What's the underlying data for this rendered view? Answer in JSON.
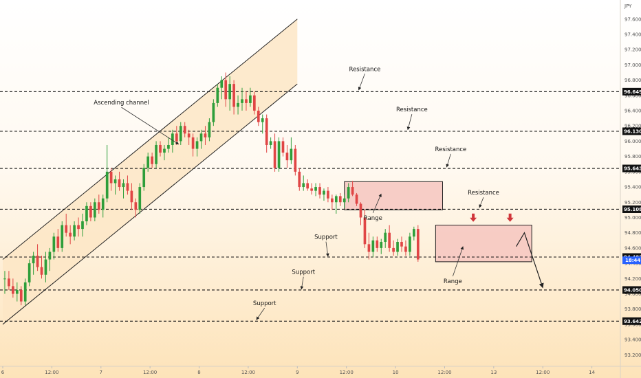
{
  "chart_data": {
    "type": "candlestick",
    "currency": "JPY",
    "colors": {
      "up": "#2e9e3a",
      "down": "#e04545",
      "channel_fill": "#fde6c6",
      "range_fill": "#f6c5c0",
      "level_line": "#111111",
      "badge_bg": "#111111",
      "current_price_bg": "#2962ff",
      "marker_arrow": "#d0343a"
    },
    "y_axis": {
      "ylim": [
        93.05,
        97.85
      ],
      "ticks": [
        "97.600",
        "97.400",
        "97.200",
        "97.000",
        "96.800",
        "96.600",
        "96.400",
        "96.200",
        "96.000",
        "95.800",
        "95.600",
        "95.400",
        "95.200",
        "95.000",
        "94.800",
        "94.600",
        "94.400",
        "94.200",
        "94.000",
        "93.800",
        "93.600",
        "93.400",
        "93.200"
      ]
    },
    "x_axis": {
      "xlim": [
        0,
        156
      ],
      "ticks": [
        {
          "label": "6",
          "x": 0
        },
        {
          "label": "12:00",
          "x": 12
        },
        {
          "label": "7",
          "x": 24
        },
        {
          "label": "12:00",
          "x": 36
        },
        {
          "label": "8",
          "x": 48
        },
        {
          "label": "12:00",
          "x": 60
        },
        {
          "label": "9",
          "x": 72
        },
        {
          "label": "12:00",
          "x": 84
        },
        {
          "label": "10",
          "x": 96
        },
        {
          "label": "12:00",
          "x": 108
        },
        {
          "label": "13",
          "x": 120
        },
        {
          "label": "12:00",
          "x": 132
        },
        {
          "label": "14",
          "x": 144
        }
      ]
    },
    "price_levels": [
      {
        "value": 96.649,
        "label": "96.649",
        "kind": "resistance"
      },
      {
        "value": 96.13,
        "label": "96.130",
        "kind": "resistance"
      },
      {
        "value": 95.643,
        "label": "95.643",
        "kind": "resistance"
      },
      {
        "value": 95.108,
        "label": "95.108",
        "kind": "resistance"
      },
      {
        "value": 94.482,
        "label": "94.482",
        "kind": "support"
      },
      {
        "value": 94.05,
        "label": "94.050",
        "kind": "support"
      },
      {
        "value": 93.642,
        "label": "93.642",
        "kind": "support"
      }
    ],
    "current_price": {
      "value": 94.44,
      "label": "18:44"
    },
    "channel": {
      "lower": [
        [
          0,
          93.6
        ],
        [
          72,
          96.75
        ]
      ],
      "upper": [
        [
          0,
          94.45
        ],
        [
          72,
          97.6
        ]
      ]
    },
    "ranges": [
      {
        "x0": 83.5,
        "x1": 107.5,
        "y0": 95.1,
        "y1": 95.47
      },
      {
        "x0": 105.8,
        "x1": 129.3,
        "y0": 94.42,
        "y1": 94.9
      }
    ],
    "marker_arrows": [
      {
        "x": 115,
        "y": 94.97
      },
      {
        "x": 124,
        "y": 94.97
      }
    ],
    "projection": [
      [
        125.5,
        94.62
      ],
      [
        127.5,
        94.8
      ],
      [
        132,
        94.08
      ]
    ],
    "annotations": [
      {
        "text": "Ascending channel",
        "tx": 29,
        "ty": 96.48,
        "ax": 43,
        "ay": 95.96
      },
      {
        "text": "Resistance",
        "tx": 88.5,
        "ty": 96.92,
        "ax": 87,
        "ay": 96.67
      },
      {
        "text": "Resistance",
        "tx": 100,
        "ty": 96.39,
        "ax": 99,
        "ay": 96.15
      },
      {
        "text": "Resistance",
        "tx": 109.5,
        "ty": 95.87,
        "ax": 108.5,
        "ay": 95.66
      },
      {
        "text": "Resistance",
        "tx": 117.5,
        "ty": 95.3,
        "ax": 116.5,
        "ay": 95.13
      },
      {
        "text": "Range",
        "tx": 90.5,
        "ty": 94.97,
        "ax": 92.5,
        "ay": 95.31
      },
      {
        "text": "Range",
        "tx": 110,
        "ty": 94.14,
        "ax": 112.5,
        "ay": 94.62
      },
      {
        "text": "Support",
        "tx": 79,
        "ty": 94.72,
        "ax": 79.5,
        "ay": 94.49
      },
      {
        "text": "Support",
        "tx": 73.5,
        "ty": 94.26,
        "ax": 73,
        "ay": 94.06
      },
      {
        "text": "Support",
        "tx": 64,
        "ty": 93.85,
        "ax": 62,
        "ay": 93.66
      }
    ],
    "candles": [
      {
        "o": 94.2,
        "h": 94.3,
        "l": 94.0,
        "c": 94.2
      },
      {
        "o": 94.2,
        "h": 94.3,
        "l": 94.05,
        "c": 94.1
      },
      {
        "o": 94.1,
        "h": 94.2,
        "l": 93.95,
        "c": 94.0
      },
      {
        "o": 94.0,
        "h": 94.15,
        "l": 93.9,
        "c": 94.05
      },
      {
        "o": 94.05,
        "h": 94.1,
        "l": 93.85,
        "c": 93.9
      },
      {
        "o": 93.9,
        "h": 94.2,
        "l": 93.85,
        "c": 94.15
      },
      {
        "o": 94.15,
        "h": 94.45,
        "l": 94.1,
        "c": 94.4
      },
      {
        "o": 94.4,
        "h": 94.55,
        "l": 94.25,
        "c": 94.5
      },
      {
        "o": 94.5,
        "h": 94.65,
        "l": 94.3,
        "c": 94.35
      },
      {
        "o": 94.35,
        "h": 94.5,
        "l": 94.2,
        "c": 94.25
      },
      {
        "o": 94.25,
        "h": 94.55,
        "l": 94.15,
        "c": 94.45
      },
      {
        "o": 94.45,
        "h": 94.6,
        "l": 94.3,
        "c": 94.55
      },
      {
        "o": 94.55,
        "h": 94.8,
        "l": 94.45,
        "c": 94.75
      },
      {
        "o": 94.75,
        "h": 94.85,
        "l": 94.55,
        "c": 94.6
      },
      {
        "o": 94.6,
        "h": 94.95,
        "l": 94.55,
        "c": 94.9
      },
      {
        "o": 94.9,
        "h": 95.05,
        "l": 94.75,
        "c": 94.8
      },
      {
        "o": 94.8,
        "h": 94.9,
        "l": 94.65,
        "c": 94.75
      },
      {
        "o": 94.75,
        "h": 94.95,
        "l": 94.7,
        "c": 94.9
      },
      {
        "o": 94.9,
        "h": 95.0,
        "l": 94.75,
        "c": 94.85
      },
      {
        "o": 94.85,
        "h": 95.05,
        "l": 94.75,
        "c": 94.95
      },
      {
        "o": 94.95,
        "h": 95.2,
        "l": 94.9,
        "c": 95.15
      },
      {
        "o": 95.15,
        "h": 95.2,
        "l": 94.95,
        "c": 95.0
      },
      {
        "o": 95.0,
        "h": 95.25,
        "l": 94.95,
        "c": 95.2
      },
      {
        "o": 95.2,
        "h": 95.3,
        "l": 95.05,
        "c": 95.1
      },
      {
        "o": 95.1,
        "h": 95.3,
        "l": 95.0,
        "c": 95.25
      },
      {
        "o": 95.25,
        "h": 95.95,
        "l": 95.2,
        "c": 95.6
      },
      {
        "o": 95.6,
        "h": 95.65,
        "l": 95.35,
        "c": 95.45
      },
      {
        "o": 95.45,
        "h": 95.55,
        "l": 95.3,
        "c": 95.5
      },
      {
        "o": 95.5,
        "h": 95.6,
        "l": 95.35,
        "c": 95.4
      },
      {
        "o": 95.4,
        "h": 95.5,
        "l": 95.25,
        "c": 95.45
      },
      {
        "o": 95.45,
        "h": 95.55,
        "l": 95.3,
        "c": 95.35
      },
      {
        "o": 95.35,
        "h": 95.45,
        "l": 95.1,
        "c": 95.2
      },
      {
        "o": 95.2,
        "h": 95.25,
        "l": 95.0,
        "c": 95.1
      },
      {
        "o": 95.1,
        "h": 95.45,
        "l": 95.05,
        "c": 95.4
      },
      {
        "o": 95.4,
        "h": 95.7,
        "l": 95.35,
        "c": 95.65
      },
      {
        "o": 95.65,
        "h": 95.85,
        "l": 95.6,
        "c": 95.8
      },
      {
        "o": 95.8,
        "h": 95.85,
        "l": 95.65,
        "c": 95.7
      },
      {
        "o": 95.7,
        "h": 96.0,
        "l": 95.65,
        "c": 95.95
      },
      {
        "o": 95.95,
        "h": 96.0,
        "l": 95.8,
        "c": 95.85
      },
      {
        "o": 95.85,
        "h": 95.95,
        "l": 95.75,
        "c": 95.9
      },
      {
        "o": 95.9,
        "h": 96.05,
        "l": 95.85,
        "c": 95.95
      },
      {
        "o": 95.95,
        "h": 96.15,
        "l": 95.85,
        "c": 96.1
      },
      {
        "o": 96.1,
        "h": 96.2,
        "l": 95.95,
        "c": 96.0
      },
      {
        "o": 96.0,
        "h": 96.25,
        "l": 95.95,
        "c": 96.2
      },
      {
        "o": 96.2,
        "h": 96.25,
        "l": 96.05,
        "c": 96.1
      },
      {
        "o": 96.1,
        "h": 96.15,
        "l": 95.95,
        "c": 96.05
      },
      {
        "o": 96.05,
        "h": 96.1,
        "l": 95.8,
        "c": 95.9
      },
      {
        "o": 95.9,
        "h": 96.05,
        "l": 95.8,
        "c": 96.0
      },
      {
        "o": 96.0,
        "h": 96.15,
        "l": 95.9,
        "c": 96.1
      },
      {
        "o": 96.1,
        "h": 96.2,
        "l": 95.95,
        "c": 96.05
      },
      {
        "o": 96.05,
        "h": 96.3,
        "l": 96.0,
        "c": 96.25
      },
      {
        "o": 96.25,
        "h": 96.55,
        "l": 96.2,
        "c": 96.5
      },
      {
        "o": 96.5,
        "h": 96.75,
        "l": 96.45,
        "c": 96.7
      },
      {
        "o": 96.7,
        "h": 96.85,
        "l": 96.55,
        "c": 96.8
      },
      {
        "o": 96.8,
        "h": 96.9,
        "l": 96.45,
        "c": 96.55
      },
      {
        "o": 96.55,
        "h": 96.85,
        "l": 96.4,
        "c": 96.75
      },
      {
        "o": 96.75,
        "h": 96.8,
        "l": 96.35,
        "c": 96.45
      },
      {
        "o": 96.45,
        "h": 96.6,
        "l": 96.35,
        "c": 96.5
      },
      {
        "o": 96.5,
        "h": 96.7,
        "l": 96.4,
        "c": 96.55
      },
      {
        "o": 96.55,
        "h": 96.65,
        "l": 96.4,
        "c": 96.5
      },
      {
        "o": 96.5,
        "h": 96.7,
        "l": 96.45,
        "c": 96.6
      },
      {
        "o": 96.6,
        "h": 96.65,
        "l": 96.35,
        "c": 96.4
      },
      {
        "o": 96.4,
        "h": 96.45,
        "l": 96.2,
        "c": 96.25
      },
      {
        "o": 96.25,
        "h": 96.35,
        "l": 96.1,
        "c": 96.3
      },
      {
        "o": 96.3,
        "h": 96.35,
        "l": 95.85,
        "c": 95.95
      },
      {
        "o": 95.95,
        "h": 96.05,
        "l": 95.9,
        "c": 96.0
      },
      {
        "o": 96.0,
        "h": 96.1,
        "l": 95.6,
        "c": 95.65
      },
      {
        "o": 95.65,
        "h": 96.05,
        "l": 95.6,
        "c": 96.0
      },
      {
        "o": 96.0,
        "h": 96.05,
        "l": 95.8,
        "c": 95.85
      },
      {
        "o": 95.85,
        "h": 95.95,
        "l": 95.65,
        "c": 95.75
      },
      {
        "o": 95.75,
        "h": 96.05,
        "l": 95.7,
        "c": 95.9
      },
      {
        "o": 95.9,
        "h": 95.95,
        "l": 95.55,
        "c": 95.6
      },
      {
        "o": 95.6,
        "h": 95.65,
        "l": 95.35,
        "c": 95.4
      },
      {
        "o": 95.4,
        "h": 95.55,
        "l": 95.35,
        "c": 95.45
      },
      {
        "o": 95.45,
        "h": 95.5,
        "l": 95.35,
        "c": 95.38
      },
      {
        "o": 95.38,
        "h": 95.45,
        "l": 95.3,
        "c": 95.35
      },
      {
        "o": 95.35,
        "h": 95.45,
        "l": 95.28,
        "c": 95.4
      },
      {
        "o": 95.4,
        "h": 95.45,
        "l": 95.25,
        "c": 95.3
      },
      {
        "o": 95.3,
        "h": 95.38,
        "l": 95.22,
        "c": 95.35
      },
      {
        "o": 95.35,
        "h": 95.4,
        "l": 95.2,
        "c": 95.25
      },
      {
        "o": 95.25,
        "h": 95.3,
        "l": 95.1,
        "c": 95.2
      },
      {
        "o": 95.2,
        "h": 95.3,
        "l": 95.05,
        "c": 95.28
      },
      {
        "o": 95.28,
        "h": 95.32,
        "l": 95.15,
        "c": 95.2
      },
      {
        "o": 95.2,
        "h": 95.3,
        "l": 95.12,
        "c": 95.25
      },
      {
        "o": 95.25,
        "h": 95.45,
        "l": 95.2,
        "c": 95.4
      },
      {
        "o": 95.4,
        "h": 95.48,
        "l": 95.28,
        "c": 95.3
      },
      {
        "o": 95.3,
        "h": 95.32,
        "l": 95.15,
        "c": 95.18
      },
      {
        "o": 95.18,
        "h": 95.2,
        "l": 94.9,
        "c": 95.0
      },
      {
        "o": 95.0,
        "h": 95.1,
        "l": 94.6,
        "c": 94.65
      },
      {
        "o": 94.65,
        "h": 94.8,
        "l": 94.45,
        "c": 94.55
      },
      {
        "o": 94.55,
        "h": 94.75,
        "l": 94.48,
        "c": 94.7
      },
      {
        "o": 94.7,
        "h": 94.75,
        "l": 94.55,
        "c": 94.6
      },
      {
        "o": 94.6,
        "h": 94.72,
        "l": 94.52,
        "c": 94.68
      },
      {
        "o": 94.68,
        "h": 94.85,
        "l": 94.6,
        "c": 94.8
      },
      {
        "o": 94.8,
        "h": 94.9,
        "l": 94.55,
        "c": 94.6
      },
      {
        "o": 94.6,
        "h": 94.7,
        "l": 94.5,
        "c": 94.55
      },
      {
        "o": 94.55,
        "h": 94.72,
        "l": 94.5,
        "c": 94.68
      },
      {
        "o": 94.68,
        "h": 94.75,
        "l": 94.55,
        "c": 94.62
      },
      {
        "o": 94.62,
        "h": 94.7,
        "l": 94.5,
        "c": 94.55
      },
      {
        "o": 94.55,
        "h": 94.8,
        "l": 94.5,
        "c": 94.75
      },
      {
        "o": 94.75,
        "h": 94.88,
        "l": 94.7,
        "c": 94.85
      },
      {
        "o": 94.85,
        "h": 94.9,
        "l": 94.42,
        "c": 94.45
      }
    ]
  }
}
